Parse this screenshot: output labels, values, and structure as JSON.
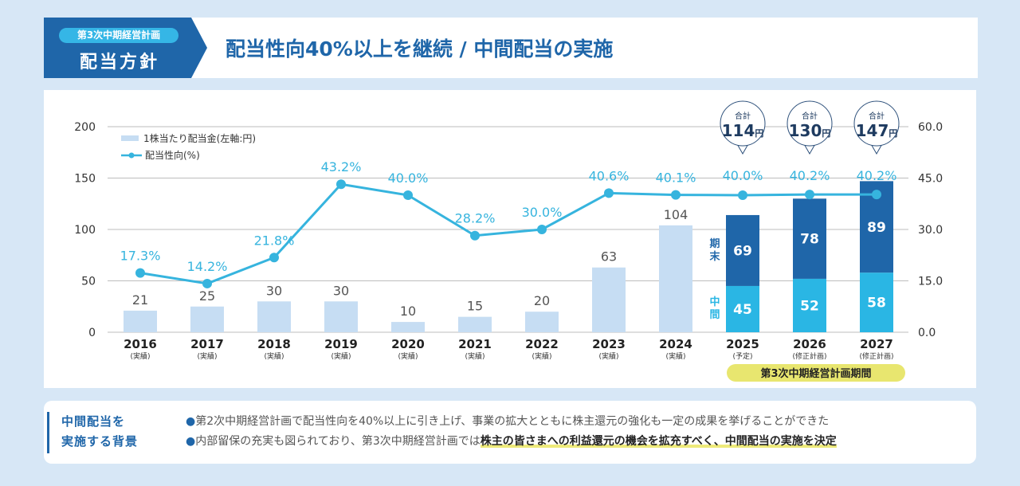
{
  "header": {
    "badge": "第3次中期経営計画",
    "section": "配当方針",
    "title": "配当性向40%以上を継続 / 中間配当の実施"
  },
  "chart_data": {
    "type": "bar+line",
    "categories": [
      "2016",
      "2017",
      "2018",
      "2019",
      "2020",
      "2021",
      "2022",
      "2023",
      "2024",
      "2025",
      "2026",
      "2027"
    ],
    "category_sublabels": [
      "(実績)",
      "(実績)",
      "(実績)",
      "(実績)",
      "(実績)",
      "(実績)",
      "(実績)",
      "(実績)",
      "(実績)",
      "(予定)",
      "(修正計画)",
      "(修正計画)"
    ],
    "legend": [
      "1株当たり配当金(左軸:円)",
      "配当性向(%)"
    ],
    "dividend": [
      21,
      25,
      30,
      30,
      10,
      15,
      20,
      63,
      104,
      null,
      null,
      null
    ],
    "interim": [
      null,
      null,
      null,
      null,
      null,
      null,
      null,
      null,
      null,
      45,
      52,
      58
    ],
    "year_end": [
      null,
      null,
      null,
      null,
      null,
      null,
      null,
      null,
      null,
      69,
      78,
      89
    ],
    "totals": [
      {
        "label": "合計",
        "value": "114",
        "unit": "円"
      },
      {
        "label": "合計",
        "value": "130",
        "unit": "円"
      },
      {
        "label": "合計",
        "value": "147",
        "unit": "円"
      }
    ],
    "payout_ratio": [
      17.3,
      14.2,
      21.8,
      43.2,
      40.0,
      28.2,
      30.0,
      40.6,
      40.1,
      40.0,
      40.2,
      40.2
    ],
    "payout_labels": [
      "17.3%",
      "14.2%",
      "21.8%",
      "43.2%",
      "40.0%",
      "28.2%",
      "30.0%",
      "40.6%",
      "40.1%",
      "40.0%",
      "40.2%",
      "40.2%"
    ],
    "stack_labels": {
      "year_end": "期末",
      "interim": "中間"
    },
    "period_label": "第3次中期経営計画期間",
    "left_axis": {
      "ylim": [
        0,
        200
      ],
      "ticks": [
        "0",
        "50",
        "100",
        "150",
        "200"
      ]
    },
    "right_axis": {
      "ylim": [
        0,
        60
      ],
      "ticks": [
        "0.0",
        "15.0",
        "30.0",
        "45.0",
        "60.0"
      ]
    },
    "grid": true,
    "legend_placement": "top-left",
    "colors": {
      "bar": "#c6ddf3",
      "year_end": "#1f66a9",
      "interim": "#2ab6e4",
      "line": "#36b4de",
      "period": "#e8e66f"
    }
  },
  "bottom": {
    "title_lines": [
      "中間配当を",
      "実施する背景"
    ],
    "bullet1": "第2次中期経営計画で配当性向を40%以上に引き上げ、事業の拡大とともに株主還元の強化も一定の成果を挙げることができた",
    "bullet2_plain": "内部留保の充実も図られており、第3次中期経営計画では",
    "bullet2_highlight": "株主の皆さまへの利益還元の機会を拡充すべく、中間配当の実施を決定"
  }
}
